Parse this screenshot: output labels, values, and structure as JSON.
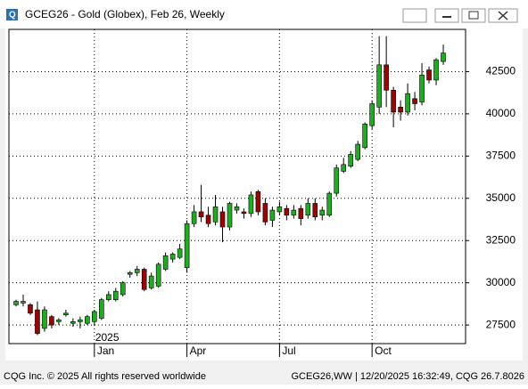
{
  "chart_data": {
    "type": "candlestick",
    "title": "GCEG26 - Gold (Globex), Feb 26, Weekly",
    "year_label": "2025",
    "categories": [
      null,
      null,
      null,
      null,
      null,
      null,
      null,
      null,
      null,
      null,
      null,
      "Jan",
      null,
      null,
      null,
      null,
      null,
      null,
      null,
      null,
      null,
      null,
      null,
      null,
      "Apr",
      null,
      null,
      null,
      null,
      null,
      null,
      null,
      null,
      null,
      null,
      null,
      null,
      "Jul",
      null,
      null,
      null,
      null,
      null,
      null,
      null,
      null,
      null,
      null,
      null,
      null,
      "Oct",
      null,
      null,
      null,
      null,
      null,
      null,
      null,
      null,
      null,
      null
    ],
    "open": [
      28700,
      28800,
      28700,
      28400,
      27300,
      28000,
      27700,
      28100,
      27600,
      27700,
      27600,
      27700,
      27900,
      29000,
      29000,
      29300,
      30500,
      30600,
      30800,
      29700,
      29800,
      30800,
      31400,
      31500,
      30900,
      33500,
      34200,
      34000,
      33600,
      34200,
      33300,
      34300,
      34200,
      34100,
      35400,
      34700,
      33700,
      34200,
      34400,
      34000,
      34400,
      34000,
      34700,
      34000,
      34000,
      35300,
      36600,
      36900,
      37300,
      38000,
      39300,
      40400,
      42900,
      41400,
      40400,
      40100,
      40900,
      40700,
      42600,
      42000,
      43100
    ],
    "high": [
      29000,
      29300,
      28800,
      28900,
      28600,
      28100,
      27900,
      28400,
      27900,
      28000,
      28100,
      28400,
      29100,
      29500,
      29700,
      30100,
      30700,
      31000,
      30900,
      30600,
      31200,
      31800,
      31800,
      32300,
      33700,
      34600,
      35800,
      34500,
      35200,
      34500,
      34800,
      34700,
      34400,
      35400,
      35500,
      35000,
      34500,
      34800,
      34600,
      34600,
      34600,
      35000,
      35000,
      34500,
      35400,
      37000,
      37400,
      37800,
      38400,
      39500,
      40800,
      44600,
      44600,
      41600,
      40800,
      41800,
      41300,
      43000,
      42800,
      43300,
      44100
    ],
    "low": [
      28600,
      28600,
      28100,
      26900,
      27100,
      27300,
      27500,
      28000,
      27400,
      27300,
      27500,
      27500,
      27800,
      28900,
      28900,
      29200,
      30300,
      30400,
      29500,
      29600,
      29700,
      30700,
      31200,
      31400,
      30600,
      33300,
      33600,
      33300,
      33400,
      32400,
      33100,
      34100,
      33800,
      33900,
      34000,
      33400,
      33300,
      34000,
      33700,
      33800,
      33400,
      33800,
      33700,
      33700,
      33900,
      35100,
      36500,
      36800,
      37200,
      37900,
      39100,
      40000,
      40400,
      39200,
      39600,
      39900,
      40200,
      40500,
      41800,
      41700,
      42900
    ],
    "close": [
      28900,
      28900,
      28200,
      27000,
      28400,
      27500,
      27800,
      28200,
      27700,
      27800,
      28000,
      28300,
      29000,
      29300,
      29500,
      30000,
      30600,
      30800,
      29600,
      30400,
      31100,
      31600,
      31700,
      32000,
      33500,
      34200,
      33900,
      33500,
      34500,
      33300,
      34700,
      34500,
      34100,
      35200,
      34200,
      33600,
      34300,
      34500,
      34000,
      34300,
      33800,
      34700,
      33900,
      34300,
      35300,
      36800,
      37000,
      37600,
      38200,
      39400,
      40600,
      42900,
      41400,
      40100,
      40100,
      41200,
      40600,
      42300,
      42000,
      43200,
      43600
    ],
    "up_color": "#19b119",
    "down_color": "#a00000",
    "ylim": [
      26400,
      45000
    ],
    "yticks": [
      27500,
      30000,
      32500,
      35000,
      37500,
      40000,
      42500
    ],
    "grid": true
  },
  "footer": {
    "left": "CQG Inc. © 2025 All rights reserved worldwide",
    "right": "GCEG26,WW | 12/20/2025 16:32:49, CQG 26.7.8026"
  }
}
